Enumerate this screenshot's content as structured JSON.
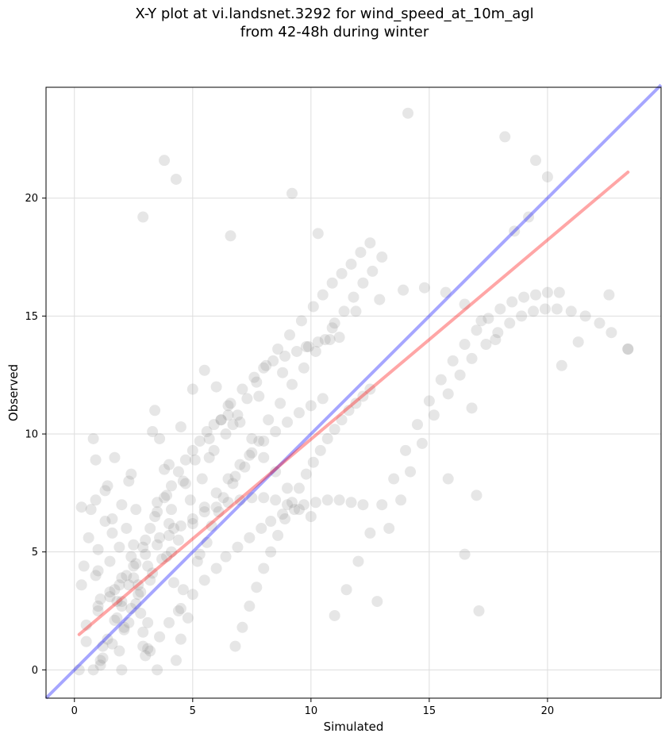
{
  "chart_data": {
    "type": "scatter",
    "title_lines": [
      "X-Y plot at vi.landsnet.3292 for wind_speed_at_10m_agl",
      "from 42-48h during winter"
    ],
    "xlabel": "Simulated",
    "ylabel": "Observed",
    "xlim": [
      -1.2,
      24.8
    ],
    "ylim": [
      -1.2,
      24.7
    ],
    "x_ticks": [
      0,
      5,
      10,
      15,
      20
    ],
    "y_ticks": [
      0,
      5,
      10,
      15,
      20
    ],
    "grid": true,
    "point_color": "#808080",
    "point_opacity": 0.2,
    "identity_line": {
      "x": [
        -1.2,
        24.8
      ],
      "y": [
        -1.2,
        24.8
      ],
      "color": "#0000ff",
      "opacity": 0.35
    },
    "regression_line": {
      "x": [
        0.2,
        23.4
      ],
      "y": [
        1.5,
        21.1
      ],
      "color": "#ff0000",
      "opacity": 0.35
    },
    "points": {
      "x": [
        0.3,
        0.4,
        0.3,
        0.5,
        0.2,
        0.8,
        0.9,
        1.0,
        1.1,
        1.2,
        1.1,
        1.0,
        0.9,
        1.3,
        1.4,
        1.6,
        1.7,
        1.8,
        1.9,
        2.0,
        2.1,
        1.8,
        1.5,
        2.2,
        2.3,
        2.5,
        2.7,
        2.8,
        2.9,
        3.0,
        3.1,
        3.2,
        2.6,
        2.4,
        2.0,
        1.7,
        3.3,
        3.4,
        3.6,
        3.8,
        3.9,
        4.0,
        4.1,
        4.2,
        4.4,
        4.5,
        4.3,
        3.5,
        3.2,
        2.9,
        2.6,
        2.2,
        1.9,
        1.6,
        1.3,
        0.9,
        0.7,
        0.6,
        1.0,
        1.5,
        2.0,
        2.5,
        3.0,
        3.5,
        4.0,
        4.5,
        5.0,
        5.5,
        6.0,
        6.5,
        7.0,
        7.5,
        8.0,
        8.5,
        9.0,
        5.2,
        5.6,
        6.1,
        6.7,
        7.2,
        4.8,
        4.6,
        5.3,
        5.8,
        6.3,
        6.8,
        7.4,
        7.8,
        8.2,
        8.7,
        9.2,
        9.7,
        10.2,
        10.6,
        11.0,
        11.4,
        11.8,
        12.2,
        12.6,
        13.0,
        3.7,
        4.2,
        4.9,
        5.4,
        5.9,
        6.4,
        6.9,
        7.3,
        7.7,
        8.1,
        8.6,
        9.1,
        9.6,
        10.1,
        10.5,
        10.9,
        11.3,
        11.7,
        12.1,
        12.5,
        2.3,
        2.7,
        3.1,
        3.6,
        4.1,
        4.7,
        5.1,
        5.7,
        6.2,
        6.6,
        7.1,
        7.6,
        8.0,
        8.4,
        8.9,
        9.4,
        9.9,
        10.3,
        10.8,
        11.2,
        1.2,
        1.6,
        2.1,
        2.4,
        2.8,
        3.3,
        3.9,
        4.4,
        5.0,
        5.5,
        6.0,
        6.5,
        7.0,
        7.5,
        8.0,
        8.5,
        9.0,
        9.5,
        10.0,
        10.5,
        11.0,
        11.5,
        12.0,
        12.5,
        13.0,
        13.5,
        14.0,
        14.5,
        15.0,
        15.5,
        16.0,
        16.5,
        17.0,
        17.5,
        18.0,
        18.5,
        19.0,
        19.5,
        20.0,
        20.5,
        13.3,
        13.8,
        14.2,
        14.7,
        15.2,
        15.8,
        16.3,
        16.8,
        17.4,
        17.9,
        18.4,
        18.9,
        19.4,
        19.9,
        20.4,
        21.0,
        21.6,
        22.2,
        22.7,
        23.4,
        3.8,
        4.3,
        2.9,
        6.6,
        9.2,
        10.3,
        14.1,
        16.8,
        18.2,
        17.1,
        19.5,
        20.0,
        21.3,
        22.6,
        23.4,
        20.6,
        17.0,
        16.5,
        15.8,
        12.8,
        0.8,
        1.1,
        1.4,
        1.7,
        2.0,
        2.3,
        2.6,
        2.9,
        3.2,
        3.5,
        3.8,
        4.1,
        4.4,
        4.7,
        5.0,
        5.3,
        5.6,
        5.9,
        6.2,
        6.5,
        6.8,
        7.1,
        7.4,
        7.7,
        8.0,
        8.3,
        8.6,
        8.9,
        9.2,
        9.5,
        9.8,
        10.1,
        10.4,
        10.7,
        11.0,
        11.3,
        11.6,
        11.9,
        12.2,
        12.5,
        1.9,
        2.4,
        3.4,
        4.6,
        5.7,
        6.7,
        7.8,
        8.8,
        9.8,
        10.9,
        11.9,
        12.9,
        13.9,
        14.8,
        15.7,
        16.5,
        17.2,
        17.8,
        18.6,
        19.2,
        0.5,
        1.0,
        1.5,
        2.0,
        2.5,
        3.0,
        3.5,
        4.0,
        4.5,
        5.0,
        5.5,
        6.0,
        6.5,
        7.0,
        7.5,
        8.0,
        8.5,
        9.0,
        9.5,
        10.0,
        3.1,
        3.6,
        4.0,
        4.5,
        5.0,
        5.5,
        6.0,
        6.4,
        6.9,
        7.4,
        7.9,
        8.3,
        8.8,
        9.3,
        9.7,
        10.2,
        10.7,
        11.2,
        11.7,
        12.2
      ],
      "y": [
        6.9,
        4.4,
        3.6,
        1.2,
        0.0,
        9.8,
        7.2,
        5.1,
        3.0,
        1.0,
        0.2,
        2.5,
        4.0,
        6.3,
        7.8,
        5.8,
        3.4,
        2.2,
        0.8,
        0.0,
        1.7,
        2.9,
        4.6,
        6.0,
        8.0,
        5.3,
        3.6,
        2.4,
        1.0,
        0.6,
        2.0,
        3.8,
        6.8,
        8.3,
        7.0,
        9.0,
        10.1,
        11.0,
        9.8,
        8.5,
        7.4,
        6.2,
        5.0,
        3.7,
        2.5,
        1.3,
        0.4,
        0.0,
        0.8,
        1.6,
        2.8,
        4.0,
        5.2,
        6.4,
        7.6,
        8.9,
        6.8,
        5.6,
        4.2,
        3.1,
        2.7,
        3.9,
        5.5,
        7.1,
        8.7,
        10.3,
        11.9,
        12.7,
        12.0,
        11.2,
        10.5,
        9.8,
        9.0,
        8.4,
        7.7,
        4.6,
        5.4,
        6.7,
        7.9,
        8.6,
        2.2,
        3.4,
        4.9,
        6.1,
        7.3,
        8.2,
        9.1,
        9.7,
        10.6,
        11.3,
        12.1,
        12.8,
        13.5,
        14.0,
        14.7,
        15.2,
        15.8,
        16.4,
        16.9,
        17.5,
        4.7,
        6.0,
        7.2,
        8.1,
        9.3,
        10.0,
        10.8,
        11.5,
        12.2,
        12.9,
        13.6,
        14.2,
        14.8,
        15.4,
        15.9,
        16.4,
        16.8,
        17.2,
        17.7,
        18.1,
        2.0,
        3.2,
        4.4,
        5.6,
        6.8,
        7.9,
        8.9,
        9.8,
        10.6,
        11.3,
        11.9,
        12.4,
        12.8,
        13.1,
        13.3,
        13.5,
        13.7,
        13.9,
        14.0,
        14.1,
        0.5,
        1.1,
        1.8,
        2.6,
        3.3,
        4.1,
        4.8,
        5.5,
        6.2,
        6.9,
        7.5,
        8.1,
        8.7,
        9.2,
        9.7,
        10.1,
        10.5,
        10.9,
        11.2,
        11.5,
        2.3,
        3.4,
        4.6,
        5.8,
        7.0,
        8.1,
        9.3,
        10.4,
        11.4,
        12.3,
        13.1,
        13.8,
        14.4,
        14.9,
        15.3,
        15.6,
        15.8,
        15.9,
        16.0,
        16.0,
        6.0,
        7.2,
        8.4,
        9.6,
        10.8,
        11.7,
        12.5,
        13.2,
        13.8,
        14.3,
        14.7,
        15.0,
        15.2,
        15.3,
        15.3,
        15.2,
        15.0,
        14.7,
        14.3,
        13.6,
        21.6,
        20.8,
        19.2,
        18.4,
        20.2,
        18.5,
        23.6,
        11.1,
        22.6,
        2.5,
        21.6,
        20.9,
        13.9,
        15.9,
        13.6,
        12.9,
        7.4,
        4.9,
        8.1,
        2.9,
        0.0,
        0.4,
        1.3,
        2.1,
        2.9,
        3.6,
        4.5,
        5.2,
        6.0,
        6.7,
        7.3,
        7.8,
        8.4,
        8.9,
        9.3,
        9.7,
        10.1,
        10.4,
        10.6,
        10.8,
        1.0,
        1.8,
        2.7,
        3.5,
        4.3,
        5.0,
        5.7,
        6.4,
        7.1,
        7.7,
        8.3,
        8.8,
        9.3,
        9.8,
        10.2,
        10.6,
        11.0,
        11.3,
        11.6,
        11.9,
        3.6,
        4.8,
        6.5,
        8.0,
        9.0,
        10.4,
        11.6,
        12.6,
        13.7,
        14.5,
        15.2,
        15.7,
        16.1,
        16.2,
        16.0,
        15.5,
        14.8,
        14.0,
        18.6,
        19.2,
        1.9,
        2.7,
        3.3,
        3.9,
        4.4,
        4.9,
        5.3,
        5.7,
        6.1,
        6.4,
        6.7,
        6.9,
        7.1,
        7.2,
        7.3,
        7.3,
        7.2,
        7.0,
        6.8,
        6.5,
        0.9,
        1.4,
        2.0,
        2.6,
        3.2,
        3.8,
        4.3,
        4.8,
        5.2,
        5.6,
        6.0,
        6.3,
        6.6,
        6.8,
        7.0,
        7.1,
        7.2,
        7.2,
        7.1,
        7.0
      ]
    }
  }
}
